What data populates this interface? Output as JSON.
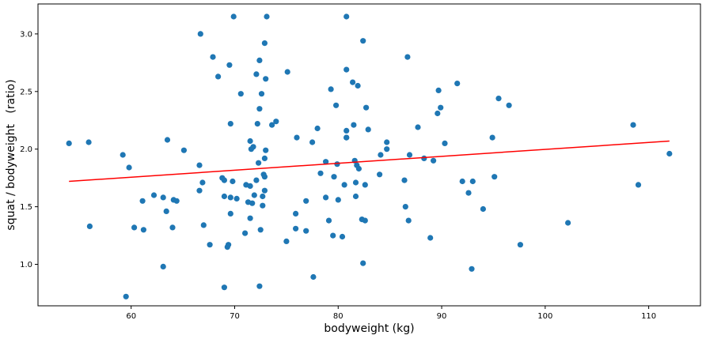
{
  "chart_data": {
    "type": "scatter",
    "title": "",
    "xlabel": "bodyweight (kg)",
    "ylabel": "squat / bodyweight   (ratio)",
    "xlim": [
      51,
      115
    ],
    "ylim": [
      0.64,
      3.26
    ],
    "xticks": [
      60,
      70,
      80,
      90,
      100,
      110
    ],
    "yticks": [
      1.0,
      1.5,
      2.0,
      2.5,
      3.0
    ],
    "grid": false,
    "point_color": "#1f77b4",
    "trendline_color": "#ff0000",
    "trendline": {
      "x": [
        54.0,
        112.0
      ],
      "y": [
        1.72,
        2.07
      ]
    },
    "points": [
      {
        "x": 54.0,
        "y": 2.05
      },
      {
        "x": 55.9,
        "y": 2.06
      },
      {
        "x": 56.0,
        "y": 1.33
      },
      {
        "x": 59.2,
        "y": 1.95
      },
      {
        "x": 59.5,
        "y": 0.72
      },
      {
        "x": 59.8,
        "y": 1.84
      },
      {
        "x": 60.3,
        "y": 1.32
      },
      {
        "x": 61.1,
        "y": 1.55
      },
      {
        "x": 61.2,
        "y": 1.3
      },
      {
        "x": 62.2,
        "y": 1.6
      },
      {
        "x": 63.1,
        "y": 1.58
      },
      {
        "x": 63.1,
        "y": 0.98
      },
      {
        "x": 63.4,
        "y": 1.46
      },
      {
        "x": 63.5,
        "y": 2.08
      },
      {
        "x": 64.0,
        "y": 1.32
      },
      {
        "x": 64.1,
        "y": 1.56
      },
      {
        "x": 64.4,
        "y": 1.55
      },
      {
        "x": 65.1,
        "y": 1.99
      },
      {
        "x": 66.6,
        "y": 1.64
      },
      {
        "x": 66.6,
        "y": 1.86
      },
      {
        "x": 66.7,
        "y": 3.0
      },
      {
        "x": 66.9,
        "y": 1.71
      },
      {
        "x": 67.0,
        "y": 1.34
      },
      {
        "x": 67.6,
        "y": 1.17
      },
      {
        "x": 67.9,
        "y": 2.8
      },
      {
        "x": 68.4,
        "y": 2.63
      },
      {
        "x": 68.8,
        "y": 1.75
      },
      {
        "x": 69.0,
        "y": 1.73
      },
      {
        "x": 69.0,
        "y": 1.59
      },
      {
        "x": 69.0,
        "y": 0.8
      },
      {
        "x": 69.3,
        "y": 1.15
      },
      {
        "x": 69.4,
        "y": 1.17
      },
      {
        "x": 69.5,
        "y": 2.73
      },
      {
        "x": 69.6,
        "y": 2.22
      },
      {
        "x": 69.6,
        "y": 1.44
      },
      {
        "x": 69.6,
        "y": 1.58
      },
      {
        "x": 69.8,
        "y": 1.72
      },
      {
        "x": 69.9,
        "y": 3.15
      },
      {
        "x": 70.2,
        "y": 1.57
      },
      {
        "x": 70.6,
        "y": 2.48
      },
      {
        "x": 71.0,
        "y": 1.27
      },
      {
        "x": 71.1,
        "y": 1.69
      },
      {
        "x": 71.3,
        "y": 1.54
      },
      {
        "x": 71.5,
        "y": 2.07
      },
      {
        "x": 71.5,
        "y": 1.68
      },
      {
        "x": 71.5,
        "y": 1.4
      },
      {
        "x": 71.6,
        "y": 2.0
      },
      {
        "x": 71.7,
        "y": 1.53
      },
      {
        "x": 71.8,
        "y": 2.02
      },
      {
        "x": 71.9,
        "y": 1.6
      },
      {
        "x": 72.1,
        "y": 1.73
      },
      {
        "x": 72.1,
        "y": 2.65
      },
      {
        "x": 72.2,
        "y": 2.22
      },
      {
        "x": 72.3,
        "y": 1.88
      },
      {
        "x": 72.4,
        "y": 2.77
      },
      {
        "x": 72.4,
        "y": 2.35
      },
      {
        "x": 72.4,
        "y": 0.81
      },
      {
        "x": 72.5,
        "y": 1.3
      },
      {
        "x": 72.6,
        "y": 2.48
      },
      {
        "x": 72.7,
        "y": 1.59
      },
      {
        "x": 72.7,
        "y": 1.51
      },
      {
        "x": 72.8,
        "y": 1.78
      },
      {
        "x": 72.9,
        "y": 1.76
      },
      {
        "x": 72.9,
        "y": 2.92
      },
      {
        "x": 72.9,
        "y": 1.64
      },
      {
        "x": 72.9,
        "y": 1.92
      },
      {
        "x": 73.0,
        "y": 2.61
      },
      {
        "x": 73.0,
        "y": 1.99
      },
      {
        "x": 73.1,
        "y": 3.15
      },
      {
        "x": 73.6,
        "y": 2.21
      },
      {
        "x": 74.0,
        "y": 2.24
      },
      {
        "x": 75.0,
        "y": 1.2
      },
      {
        "x": 75.1,
        "y": 2.67
      },
      {
        "x": 75.9,
        "y": 1.31
      },
      {
        "x": 75.9,
        "y": 1.44
      },
      {
        "x": 76.0,
        "y": 2.1
      },
      {
        "x": 76.9,
        "y": 1.55
      },
      {
        "x": 76.9,
        "y": 1.29
      },
      {
        "x": 77.5,
        "y": 2.06
      },
      {
        "x": 77.6,
        "y": 0.89
      },
      {
        "x": 78.0,
        "y": 2.18
      },
      {
        "x": 78.3,
        "y": 1.79
      },
      {
        "x": 78.8,
        "y": 1.89
      },
      {
        "x": 78.8,
        "y": 1.58
      },
      {
        "x": 79.1,
        "y": 1.38
      },
      {
        "x": 79.3,
        "y": 2.52
      },
      {
        "x": 79.5,
        "y": 1.25
      },
      {
        "x": 79.6,
        "y": 1.76
      },
      {
        "x": 79.8,
        "y": 2.38
      },
      {
        "x": 79.9,
        "y": 1.87
      },
      {
        "x": 80.0,
        "y": 1.56
      },
      {
        "x": 80.4,
        "y": 1.24
      },
      {
        "x": 80.6,
        "y": 1.69
      },
      {
        "x": 80.8,
        "y": 2.16
      },
      {
        "x": 80.8,
        "y": 2.1
      },
      {
        "x": 80.8,
        "y": 3.15
      },
      {
        "x": 80.8,
        "y": 2.1
      },
      {
        "x": 80.8,
        "y": 2.69
      },
      {
        "x": 81.4,
        "y": 2.58
      },
      {
        "x": 81.5,
        "y": 2.21
      },
      {
        "x": 81.6,
        "y": 1.9
      },
      {
        "x": 81.7,
        "y": 1.71
      },
      {
        "x": 81.7,
        "y": 1.59
      },
      {
        "x": 81.8,
        "y": 1.86
      },
      {
        "x": 81.9,
        "y": 2.55
      },
      {
        "x": 82.0,
        "y": 1.83
      },
      {
        "x": 82.3,
        "y": 1.39
      },
      {
        "x": 82.4,
        "y": 2.94
      },
      {
        "x": 82.4,
        "y": 1.01
      },
      {
        "x": 82.6,
        "y": 1.69
      },
      {
        "x": 82.6,
        "y": 1.38
      },
      {
        "x": 82.7,
        "y": 2.36
      },
      {
        "x": 82.9,
        "y": 2.17
      },
      {
        "x": 84.0,
        "y": 1.78
      },
      {
        "x": 84.1,
        "y": 1.95
      },
      {
        "x": 84.7,
        "y": 2.0
      },
      {
        "x": 84.7,
        "y": 2.06
      },
      {
        "x": 86.4,
        "y": 1.73
      },
      {
        "x": 86.5,
        "y": 1.5
      },
      {
        "x": 86.7,
        "y": 2.8
      },
      {
        "x": 86.8,
        "y": 1.38
      },
      {
        "x": 86.9,
        "y": 1.95
      },
      {
        "x": 87.7,
        "y": 2.19
      },
      {
        "x": 88.3,
        "y": 1.92
      },
      {
        "x": 88.9,
        "y": 1.23
      },
      {
        "x": 89.2,
        "y": 1.9
      },
      {
        "x": 89.6,
        "y": 2.31
      },
      {
        "x": 89.7,
        "y": 2.51
      },
      {
        "x": 89.9,
        "y": 2.36
      },
      {
        "x": 90.3,
        "y": 2.05
      },
      {
        "x": 91.5,
        "y": 2.57
      },
      {
        "x": 92.0,
        "y": 1.72
      },
      {
        "x": 92.6,
        "y": 1.62
      },
      {
        "x": 92.9,
        "y": 0.96
      },
      {
        "x": 93.0,
        "y": 1.72
      },
      {
        "x": 94.0,
        "y": 1.48
      },
      {
        "x": 94.9,
        "y": 2.1
      },
      {
        "x": 95.1,
        "y": 1.76
      },
      {
        "x": 95.5,
        "y": 2.44
      },
      {
        "x": 96.5,
        "y": 2.38
      },
      {
        "x": 97.6,
        "y": 1.17
      },
      {
        "x": 102.2,
        "y": 1.36
      },
      {
        "x": 108.5,
        "y": 2.21
      },
      {
        "x": 109.0,
        "y": 1.69
      },
      {
        "x": 112.0,
        "y": 1.96
      }
    ]
  }
}
